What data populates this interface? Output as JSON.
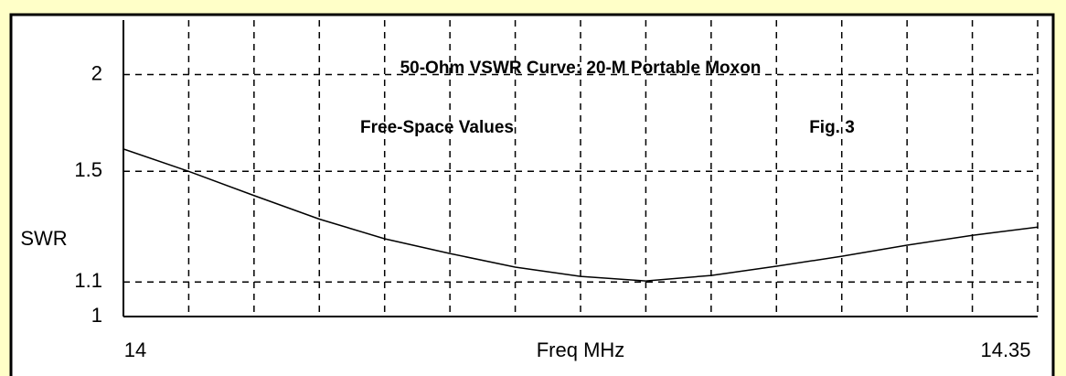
{
  "chart_data": {
    "type": "line",
    "title": "50-Ohm VSWR Curve:  20-M Portable Moxon",
    "annotations": [
      "Free-Space Values",
      "Fig. 3"
    ],
    "xlabel": "Freq MHz",
    "ylabel": "SWR",
    "x": [
      14,
      14.025,
      14.05,
      14.075,
      14.1,
      14.125,
      14.15,
      14.175,
      14.2,
      14.225,
      14.25,
      14.275,
      14.3,
      14.325,
      14.35
    ],
    "series": [
      {
        "color": "#000000",
        "values": [
          1.6,
          1.5,
          1.4,
          1.31,
          1.24,
          1.19,
          1.146,
          1.117,
          1.103,
          1.12,
          1.149,
          1.181,
          1.218,
          1.252,
          1.281
        ]
      }
    ],
    "xlim": [
      14,
      14.35
    ],
    "xticks": [
      14,
      14.35
    ],
    "xgrid": [
      14.025,
      14.05,
      14.075,
      14.1,
      14.125,
      14.15,
      14.175,
      14.2,
      14.225,
      14.25,
      14.275,
      14.3,
      14.325,
      14.35
    ],
    "ylim": [
      1,
      2.38
    ],
    "yticks": [
      1,
      1.1,
      1.5,
      2
    ],
    "yscale": "reflection",
    "grid": true
  }
}
